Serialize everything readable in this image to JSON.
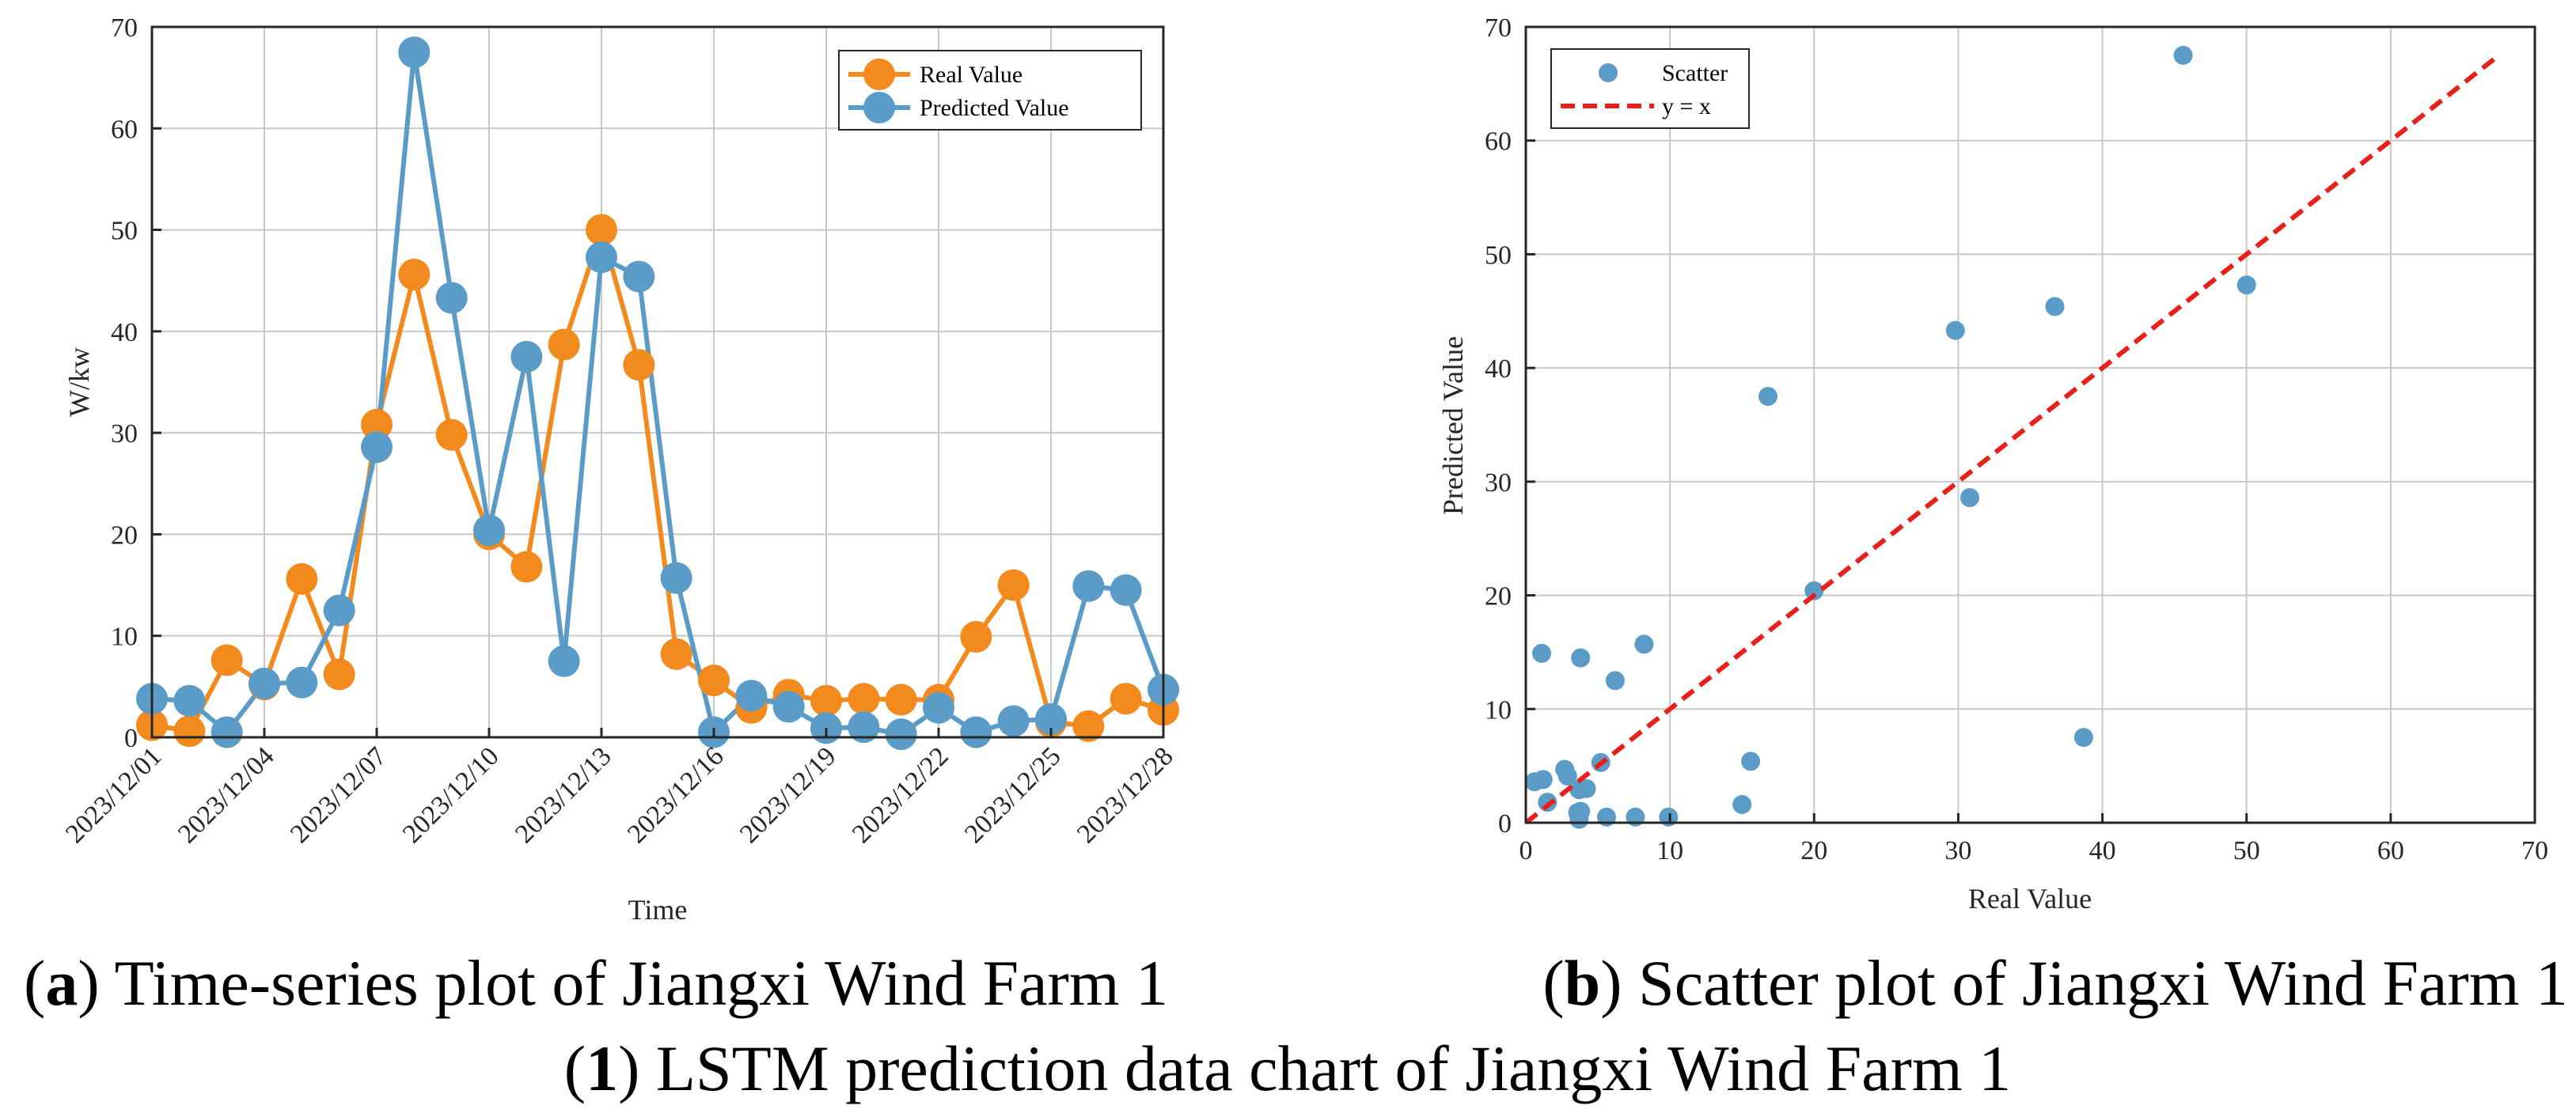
{
  "chart_data": [
    {
      "type": "line",
      "xlabel": "Time",
      "ylabel": "W/kw",
      "ylim": [
        0,
        70
      ],
      "yticks": [
        0,
        10,
        20,
        30,
        40,
        50,
        60,
        70
      ],
      "x": [
        "2023/12/01",
        "2023/12/02",
        "2023/12/03",
        "2023/12/04",
        "2023/12/05",
        "2023/12/06",
        "2023/12/07",
        "2023/12/08",
        "2023/12/09",
        "2023/12/10",
        "2023/12/11",
        "2023/12/12",
        "2023/12/13",
        "2023/12/14",
        "2023/12/15",
        "2023/12/16",
        "2023/12/17",
        "2023/12/18",
        "2023/12/19",
        "2023/12/20",
        "2023/12/21",
        "2023/12/22",
        "2023/12/23",
        "2023/12/24",
        "2023/12/25",
        "2023/12/26",
        "2023/12/27",
        "2023/12/28"
      ],
      "xtick_labels": [
        "2023/12/01",
        "2023/12/04",
        "2023/12/07",
        "2023/12/10",
        "2023/12/13",
        "2023/12/16",
        "2023/12/19",
        "2023/12/22",
        "2023/12/25",
        "2023/12/28"
      ],
      "grid": true,
      "legend_position": "top-right",
      "series": [
        {
          "name": "Real Value",
          "color": "#F28A1E",
          "values": [
            1.2,
            0.6,
            7.6,
            5.2,
            15.6,
            6.2,
            30.8,
            45.6,
            29.8,
            20.0,
            16.8,
            38.7,
            50.0,
            36.7,
            8.2,
            5.6,
            2.9,
            4.2,
            3.6,
            3.8,
            3.7,
            3.7,
            9.9,
            15.0,
            1.5,
            1.1,
            3.8,
            2.7
          ]
        },
        {
          "name": "Predicted Value",
          "color": "#5B9BC7",
          "values": [
            3.8,
            3.6,
            0.5,
            5.3,
            5.4,
            12.5,
            28.6,
            67.5,
            43.3,
            20.4,
            37.5,
            7.5,
            47.3,
            45.4,
            15.7,
            0.5,
            4.1,
            3.0,
            0.9,
            1.0,
            0.3,
            2.9,
            0.5,
            1.6,
            1.8,
            14.9,
            14.5,
            4.7
          ]
        }
      ]
    },
    {
      "type": "scatter",
      "xlabel": "Real Value",
      "ylabel": "Predicted Value",
      "xlim": [
        0,
        70
      ],
      "ylim": [
        0,
        70
      ],
      "xticks": [
        0,
        10,
        20,
        30,
        40,
        50,
        60,
        70
      ],
      "yticks": [
        0,
        10,
        20,
        30,
        40,
        50,
        60,
        70
      ],
      "grid": true,
      "legend_position": "top-left",
      "series": [
        {
          "name": "Scatter",
          "color": "#5B9BC7",
          "x": [
            1.2,
            0.6,
            7.6,
            5.2,
            15.6,
            6.2,
            30.8,
            45.6,
            29.8,
            20.0,
            16.8,
            38.7,
            50.0,
            36.7,
            8.2,
            5.6,
            2.9,
            4.2,
            3.6,
            3.8,
            3.7,
            3.7,
            9.9,
            15.0,
            1.5,
            1.1,
            3.8,
            2.7
          ],
          "y": [
            3.8,
            3.6,
            0.5,
            5.3,
            5.4,
            12.5,
            28.6,
            67.5,
            43.3,
            20.4,
            37.5,
            7.5,
            47.3,
            45.4,
            15.7,
            0.5,
            4.1,
            3.0,
            0.9,
            1.0,
            0.3,
            2.9,
            0.5,
            1.6,
            1.8,
            14.9,
            14.5,
            4.7
          ]
        },
        {
          "name": "y = x",
          "color": "#E8201A",
          "line": "dashed",
          "x": [
            0,
            67.5
          ],
          "y": [
            0,
            67.5
          ]
        }
      ]
    }
  ],
  "captions": {
    "a_label": "a",
    "a_text": " Time-series plot of Jiangxi Wind Farm 1",
    "b_label": "b",
    "b_text": " Scatter plot of Jiangxi Wind Farm 1",
    "main_label": "1",
    "main_text": " LSTM prediction data chart of Jiangxi Wind Farm 1"
  }
}
